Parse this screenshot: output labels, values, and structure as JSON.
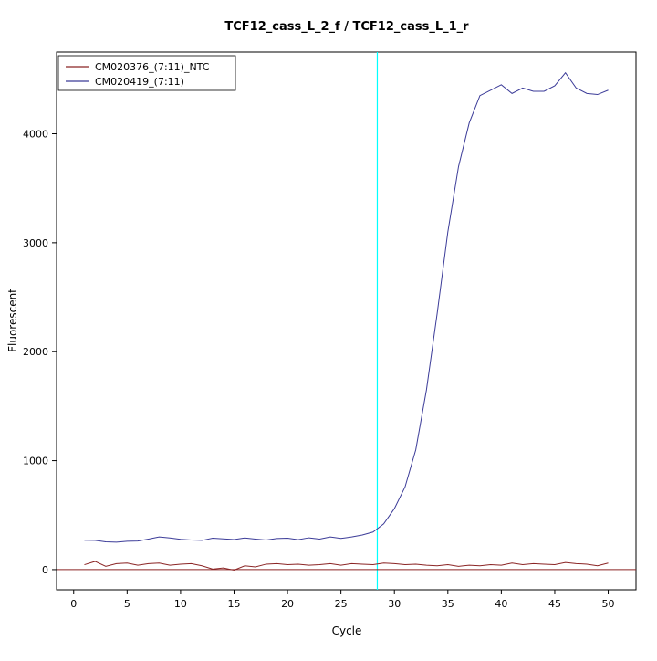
{
  "window": {
    "background": "#FFFFFF"
  },
  "chart_data": {
    "type": "line",
    "title": "TCF12_cass_L_2_f / TCF12_cass_L_1_r",
    "xlabel": "Cycle",
    "ylabel": "Fluorescent",
    "xlim": [
      -1.6,
      52.6
    ],
    "ylim": [
      -185,
      4750
    ],
    "xticks": [
      0,
      5,
      10,
      15,
      20,
      25,
      30,
      35,
      40,
      45,
      50
    ],
    "yticks": [
      0,
      1000,
      2000,
      3000,
      4000
    ],
    "grid": false,
    "legend_position": "top-left",
    "axis_color": "#000000",
    "threshold_line": {
      "x": 28.4,
      "color": "#00FFFF"
    },
    "baseline": {
      "y": 0,
      "color": "#8B2525"
    },
    "series": [
      {
        "name": "CM020376_(7:11)_NTC",
        "color": "#8B2525",
        "x": [
          1,
          2,
          3,
          4,
          5,
          6,
          7,
          8,
          9,
          10,
          11,
          12,
          13,
          14,
          15,
          16,
          17,
          18,
          19,
          20,
          21,
          22,
          23,
          24,
          25,
          26,
          27,
          28,
          29,
          30,
          31,
          32,
          33,
          34,
          35,
          36,
          37,
          38,
          39,
          40,
          41,
          42,
          43,
          44,
          45,
          46,
          47,
          48,
          49,
          50
        ],
        "values": [
          45,
          75,
          30,
          55,
          60,
          40,
          55,
          60,
          40,
          50,
          55,
          35,
          5,
          15,
          -5,
          35,
          25,
          50,
          55,
          45,
          50,
          40,
          45,
          55,
          40,
          55,
          50,
          45,
          60,
          55,
          45,
          50,
          40,
          35,
          45,
          30,
          40,
          35,
          45,
          40,
          60,
          45,
          55,
          50,
          45,
          65,
          55,
          50,
          35,
          60
        ]
      },
      {
        "name": "CM020419_(7:11)",
        "color": "#3B3B98",
        "x": [
          1,
          2,
          3,
          4,
          5,
          6,
          7,
          8,
          9,
          10,
          11,
          12,
          13,
          14,
          15,
          16,
          17,
          18,
          19,
          20,
          21,
          22,
          23,
          24,
          25,
          26,
          27,
          28,
          29,
          30,
          31,
          32,
          33,
          34,
          35,
          36,
          37,
          38,
          39,
          40,
          41,
          42,
          43,
          44,
          45,
          46,
          47,
          48,
          49,
          50
        ],
        "values": [
          270,
          268,
          255,
          252,
          260,
          262,
          280,
          300,
          290,
          278,
          272,
          268,
          288,
          282,
          276,
          290,
          280,
          272,
          285,
          288,
          275,
          292,
          280,
          300,
          286,
          300,
          318,
          345,
          420,
          560,
          760,
          1100,
          1650,
          2350,
          3100,
          3700,
          4100,
          4350,
          4400,
          4450,
          4370,
          4420,
          4390,
          4390,
          4440,
          4560,
          4420,
          4370,
          4360,
          4400
        ]
      }
    ]
  }
}
